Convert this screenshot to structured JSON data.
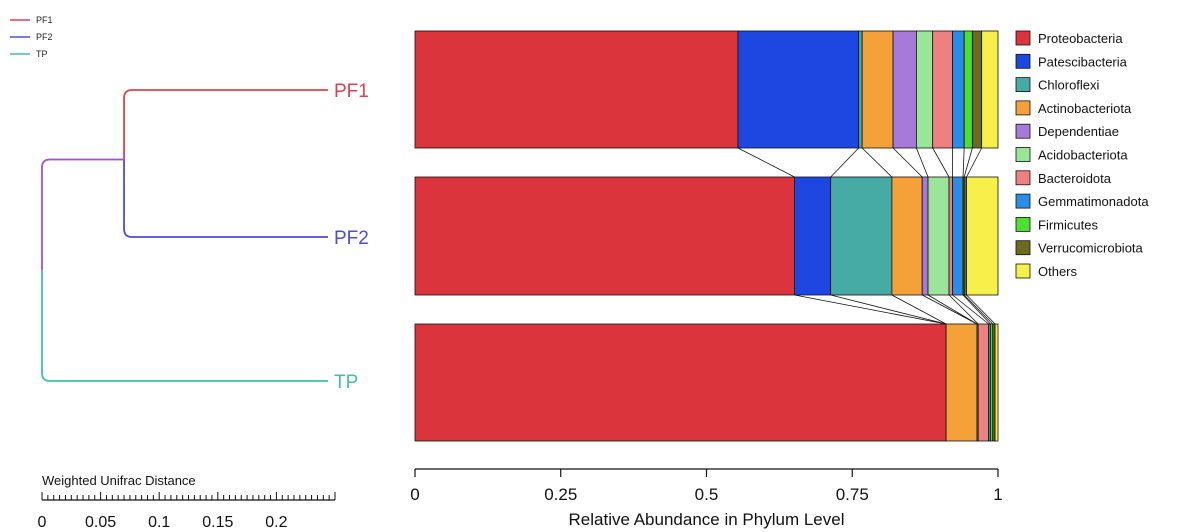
{
  "chart_data": [
    {
      "type": "dendrogram",
      "legend": [
        {
          "label": "PF1",
          "color": "#e0404e"
        },
        {
          "label": "PF2",
          "color": "#4b4be0"
        },
        {
          "label": "TP",
          "color": "#40bfae"
        }
      ],
      "leaves": [
        {
          "label": "PF1",
          "color": "#e0404e"
        },
        {
          "label": "PF2",
          "color": "#4b4be0"
        },
        {
          "label": "TP",
          "color": "#40bfae"
        }
      ],
      "merges": [
        {
          "children": [
            "PF1",
            "PF2"
          ],
          "height": 0.07
        },
        {
          "children": [
            "PF1+PF2",
            "TP"
          ],
          "height": 0.0
        }
      ],
      "root_branch_color": "#a050d0",
      "scale": {
        "title": "Weighted Unifrac Distance",
        "ticks": [
          0,
          0.05,
          0.1,
          0.15,
          0.2
        ],
        "tick_labels": [
          "0",
          "0.05",
          "0.1",
          "0.15",
          "0.2"
        ],
        "range": [
          0,
          0.25
        ]
      }
    },
    {
      "type": "bar",
      "orientation": "horizontal",
      "stacked": true,
      "xlabel": "Relative Abundance in Phylum Level",
      "xlim": [
        0,
        1
      ],
      "x_ticks": [
        0,
        0.25,
        0.5,
        0.75,
        1
      ],
      "x_tick_labels": [
        "0",
        "0.25",
        "0.5",
        "0.75",
        "1"
      ],
      "legend_position": "right",
      "categories": [
        "PF1",
        "PF2",
        "TP"
      ],
      "series": [
        {
          "name": "Proteobacteria",
          "color": "#dc343c",
          "values": [
            0.554,
            0.651,
            0.911
          ]
        },
        {
          "name": "Patescibacteria",
          "color": "#1e46e1",
          "values": [
            0.207,
            0.062,
            0.0
          ]
        },
        {
          "name": "Chloroflexi",
          "color": "#46aaa5",
          "values": [
            0.006,
            0.105,
            0.0
          ]
        },
        {
          "name": "Actinobacteriota",
          "color": "#f4a13a",
          "values": [
            0.053,
            0.052,
            0.053
          ]
        },
        {
          "name": "Dependentiae",
          "color": "#a779d9",
          "values": [
            0.04,
            0.01,
            0.0
          ]
        },
        {
          "name": "Acidobacteriota",
          "color": "#9be59b",
          "values": [
            0.028,
            0.036,
            0.002
          ]
        },
        {
          "name": "Bacteroidota",
          "color": "#ee8080",
          "values": [
            0.034,
            0.006,
            0.018
          ]
        },
        {
          "name": "Gemmatimonadota",
          "color": "#2a8ee8",
          "values": [
            0.02,
            0.018,
            0.003
          ]
        },
        {
          "name": "Firmicutes",
          "color": "#4ee030",
          "values": [
            0.014,
            0.002,
            0.004
          ]
        },
        {
          "name": "Verrucomicrobiota",
          "color": "#6b6b1e",
          "values": [
            0.016,
            0.004,
            0.004
          ]
        },
        {
          "name": "Others",
          "color": "#f6f04a",
          "values": [
            0.028,
            0.054,
            0.005
          ]
        }
      ]
    }
  ]
}
